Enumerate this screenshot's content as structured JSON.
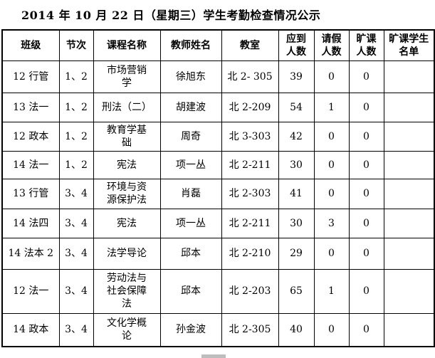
{
  "title": "2014 年 10 月 22 日（星期三）学生考勤检查情况公示",
  "table": {
    "headers": [
      "班级",
      "节次",
      "课程名称",
      "教师姓名",
      "教室",
      "应到\n人数",
      "请假\n人数",
      "旷课\n人数",
      "旷课学生\n名单"
    ],
    "rows": [
      {
        "class": "12 行管",
        "period": "1、2",
        "course": "市场营销\n学",
        "teacher": "徐旭东",
        "room": "北 2- 305",
        "expected": "39",
        "leave": "0",
        "absent": "0",
        "roster": ""
      },
      {
        "class": "13 法一",
        "period": "1、2",
        "course": "刑法（二）",
        "teacher": "胡建波",
        "room": "北 2-209",
        "expected": "54",
        "leave": "1",
        "absent": "0",
        "roster": ""
      },
      {
        "class": "12 政本",
        "period": "1、2",
        "course": "教育学基\n础",
        "teacher": "周奇",
        "room": "北 3-303",
        "expected": "42",
        "leave": "0",
        "absent": "0",
        "roster": ""
      },
      {
        "class": "14 法一",
        "period": "1、2",
        "course": "宪法",
        "teacher": "项一丛",
        "room": "北 2-211",
        "expected": "30",
        "leave": "0",
        "absent": "0",
        "roster": ""
      },
      {
        "class": "13 行管",
        "period": "3、4",
        "course": "环境与资\n源保护法",
        "teacher": "肖磊",
        "room": "北 2-303",
        "expected": "41",
        "leave": "0",
        "absent": "0",
        "roster": ""
      },
      {
        "class": "14 法四",
        "period": "3、4",
        "course": "宪法",
        "teacher": "项一丛",
        "room": "北 2-211",
        "expected": "30",
        "leave": "3",
        "absent": "0",
        "roster": ""
      },
      {
        "class": "14 法本 2",
        "period": "3、4",
        "course": "法学导论",
        "teacher": "邱本",
        "room": "北 2-210",
        "expected": "29",
        "leave": "0",
        "absent": "0",
        "roster": ""
      },
      {
        "class": "12 法一",
        "period": "3、4",
        "course": "劳动法与\n社会保障\n法",
        "teacher": "邱本",
        "room": "北 2-203",
        "expected": "65",
        "leave": "1",
        "absent": "0",
        "roster": ""
      },
      {
        "class": "14 政本",
        "period": "3、4",
        "course": "文化学概\n论",
        "teacher": "孙金波",
        "room": "北 2-305",
        "expected": "40",
        "leave": "0",
        "absent": "0",
        "roster": ""
      }
    ]
  }
}
